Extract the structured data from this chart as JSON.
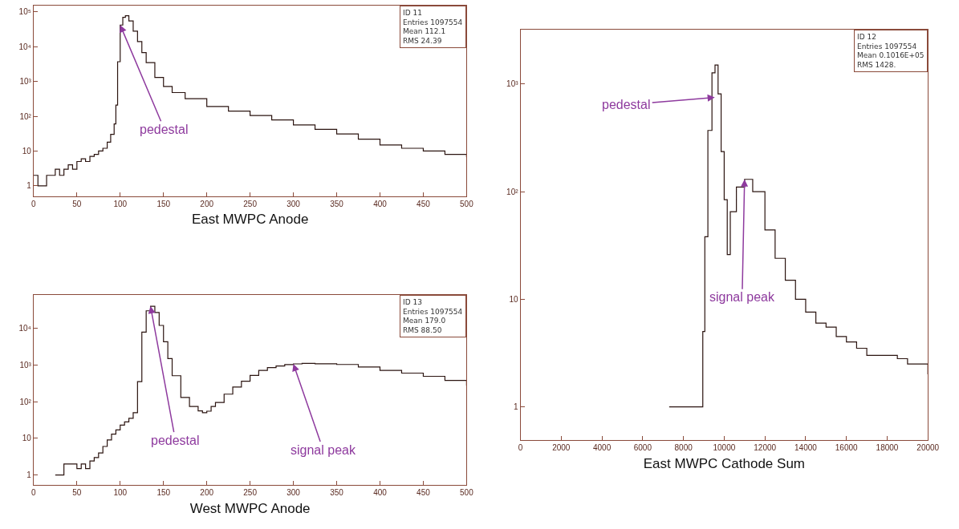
{
  "chart_data": [
    {
      "type": "step",
      "xlabel": "East MWPC Anode",
      "log": true,
      "x": [
        0,
        5,
        10,
        15,
        20,
        25,
        30,
        35,
        40,
        45,
        50,
        55,
        60,
        65,
        70,
        75,
        80,
        85,
        89,
        93,
        95,
        97,
        100,
        103,
        106,
        110,
        115,
        120,
        125,
        130,
        140,
        150,
        160,
        175,
        200,
        225,
        250,
        275,
        300,
        325,
        350,
        375,
        400,
        425,
        450,
        475,
        500
      ],
      "series": [
        {
          "color": "#2b1410",
          "values": [
            2,
            1,
            1,
            2,
            2,
            3,
            2,
            3,
            4,
            3,
            5,
            6,
            5,
            7,
            8,
            10,
            12,
            18,
            30,
            60,
            210,
            3700,
            42000,
            70000,
            78000,
            55000,
            28000,
            14000,
            6800,
            3500,
            1300,
            720,
            480,
            320,
            190,
            140,
            105,
            78,
            56,
            42,
            31,
            22,
            15,
            12,
            10,
            8,
            6.6
          ]
        }
      ],
      "xlim": [
        0,
        500
      ],
      "xticks": [
        0,
        50,
        100,
        150,
        200,
        250,
        300,
        350,
        400,
        450,
        500
      ],
      "ylim": [
        0.5,
        150000
      ],
      "yticks": [
        1,
        10,
        {
          "value": 100,
          "label": "10²"
        },
        {
          "value": 1000,
          "label": "10³"
        },
        {
          "value": 10000,
          "label": "10⁴"
        },
        {
          "value": 100000,
          "label": "10⁵"
        }
      ],
      "annotations": [
        {
          "text": "pedestal",
          "x": 100,
          "y": 42000
        },
        "ID 11",
        "Entries 1097554",
        "Mean 112.1",
        "RMS 24.39"
      ]
    },
    {
      "type": "step",
      "xlabel": "West MWPC Anode",
      "log": true,
      "x": [
        25,
        30,
        35,
        40,
        45,
        50,
        55,
        60,
        65,
        70,
        75,
        80,
        85,
        90,
        95,
        100,
        105,
        110,
        115,
        120,
        125,
        130,
        135,
        140,
        145,
        150,
        155,
        160,
        170,
        180,
        190,
        195,
        200,
        205,
        210,
        220,
        230,
        240,
        250,
        260,
        270,
        280,
        290,
        300,
        310,
        325,
        350,
        375,
        400,
        425,
        450,
        475,
        500
      ],
      "series": [
        {
          "color": "#2b1410",
          "values": [
            1,
            1,
            2,
            2,
            2,
            1.5,
            2,
            1.5,
            2.4,
            3,
            4,
            6,
            9,
            13,
            17,
            23,
            28,
            35,
            50,
            350,
            7900,
            30000,
            40000,
            27000,
            12000,
            4300,
            1500,
            510,
            130,
            74,
            56,
            50,
            55,
            74,
            95,
            160,
            250,
            360,
            520,
            710,
            850,
            940,
            1020,
            1070,
            1100,
            1080,
            1030,
            880,
            710,
            600,
            490,
            380,
            270
          ]
        }
      ],
      "xlim": [
        0,
        500
      ],
      "xticks": [
        0,
        50,
        100,
        150,
        200,
        250,
        300,
        350,
        400,
        450,
        500
      ],
      "ylim": [
        0.53,
        80000
      ],
      "yticks": [
        1,
        10,
        {
          "value": 100,
          "label": "10²"
        },
        {
          "value": 1000,
          "label": "10³"
        },
        {
          "value": 10000,
          "label": "10⁴"
        }
      ],
      "annotations": [
        {
          "text": "pedestal",
          "x": 135,
          "y": 40000
        },
        {
          "text": "signal peak",
          "x": 300,
          "y": 1070
        },
        "ID 13",
        "Entries 1097554",
        "Mean 179.0",
        "RMS 88.50"
      ]
    },
    {
      "type": "step",
      "xlabel": "East MWPC Cathode Sum",
      "log": true,
      "x": [
        7300,
        7500,
        7800,
        8000,
        8300,
        8600,
        8900,
        8950,
        9050,
        9200,
        9400,
        9550,
        9700,
        9850,
        10000,
        10150,
        10300,
        10600,
        11000,
        11400,
        12000,
        12500,
        13000,
        13500,
        14000,
        14500,
        15000,
        15500,
        16000,
        16500,
        17000,
        17500,
        18000,
        18500,
        19000,
        19500,
        20000
      ],
      "series": [
        {
          "color": "#2b1410",
          "values": [
            1,
            1,
            1,
            1,
            1,
            1,
            1,
            5,
            38,
            370,
            1270,
            1500,
            810,
            235,
            84,
            26,
            65,
            110,
            130,
            100,
            44,
            24,
            15,
            10,
            7.6,
            6,
            5.5,
            4.5,
            4,
            3.5,
            3,
            3,
            3,
            2.8,
            2.5,
            2.5,
            2
          ]
        }
      ],
      "xlim": [
        0,
        20000
      ],
      "xticks": [
        0,
        2000,
        4000,
        6000,
        8000,
        10000,
        12000,
        14000,
        16000,
        18000,
        20000
      ],
      "ylim": [
        0.49,
        3200
      ],
      "yticks": [
        1,
        10,
        {
          "value": 100,
          "label": "10²"
        },
        {
          "value": 1000,
          "label": "10³"
        }
      ],
      "annotations": [
        {
          "text": "pedestal",
          "x": 9540,
          "y": 750
        },
        {
          "text": "signal peak",
          "x": 11000,
          "y": 130
        },
        "ID 12",
        "Entries 1097554",
        "Mean 0.1016E+05",
        "RMS 1428."
      ]
    }
  ]
}
